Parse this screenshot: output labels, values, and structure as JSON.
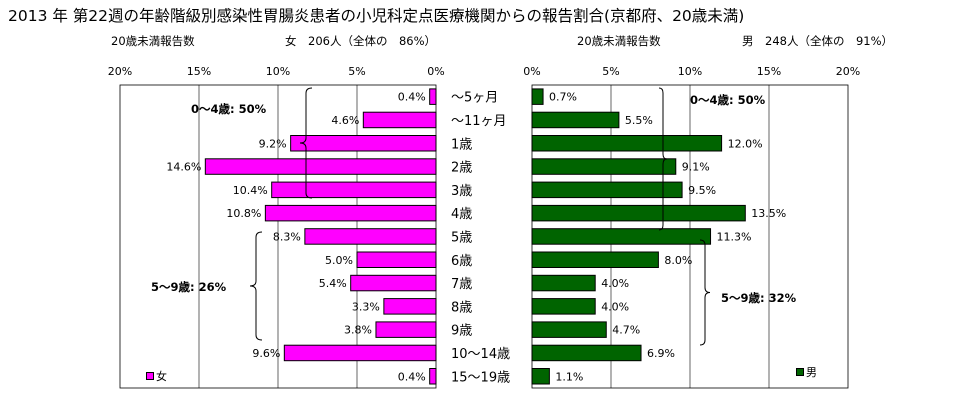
{
  "title": "2013 年 第22週の年齢階級別感染性胃腸炎患者の小児科定点医療機関からの報告割合(京都府、20歳未満)",
  "female_header": {
    "report_label": "20歳未満報告数",
    "summary": "女　206人（全体の　86%）"
  },
  "male_header": {
    "report_label": "20歳未満報告数",
    "summary": "男　248人（全体の　91%）"
  },
  "legend": {
    "female": "女",
    "male": "男"
  },
  "colors": {
    "female": "#ff00ff",
    "male": "#006400",
    "border": "#000000"
  },
  "chart_data": [
    {
      "type": "bar",
      "orientation": "horizontal",
      "direction": "right-to-left",
      "series": [
        {
          "name": "女",
          "values": [
            0.4,
            4.6,
            9.2,
            14.6,
            10.4,
            10.8,
            8.3,
            5.0,
            5.4,
            3.3,
            3.8,
            9.6,
            0.4
          ]
        }
      ],
      "categories": [
        "～5ヶ月",
        "～11ヶ月",
        "1歳",
        "2歳",
        "3歳",
        "4歳",
        "5歳",
        "6歳",
        "7歳",
        "8歳",
        "9歳",
        "10～14歳",
        "15～19歳"
      ],
      "data_labels": [
        "0.4%",
        "4.6%",
        "9.2%",
        "14.6%",
        "10.4%",
        "10.8%",
        "8.3%",
        "5.0%",
        "5.4%",
        "3.3%",
        "3.8%",
        "9.6%",
        "0.4%"
      ],
      "xlim": [
        0,
        20
      ],
      "ticks": [
        "0%",
        "5%",
        "10%",
        "15%",
        "20%"
      ],
      "annotations": [
        "0～4歳: 50%",
        "5～9歳: 26%"
      ],
      "grid": true,
      "legend_position": "bottom-left"
    },
    {
      "type": "bar",
      "orientation": "horizontal",
      "direction": "left-to-right",
      "series": [
        {
          "name": "男",
          "values": [
            0.7,
            5.5,
            12.0,
            9.1,
            9.5,
            13.5,
            11.3,
            8.0,
            4.0,
            4.0,
            4.7,
            6.9,
            1.1
          ]
        }
      ],
      "categories": [
        "～5ヶ月",
        "～11ヶ月",
        "1歳",
        "2歳",
        "3歳",
        "4歳",
        "5歳",
        "6歳",
        "7歳",
        "8歳",
        "9歳",
        "10～14歳",
        "15～19歳"
      ],
      "data_labels": [
        "0.7%",
        "5.5%",
        "12.0%",
        "9.1%",
        "9.5%",
        "13.5%",
        "11.3%",
        "8.0%",
        "4.0%",
        "4.0%",
        "4.7%",
        "6.9%",
        "1.1%"
      ],
      "xlim": [
        0,
        20
      ],
      "ticks": [
        "0%",
        "5%",
        "10%",
        "15%",
        "20%"
      ],
      "annotations": [
        "0～4歳: 50%",
        "5～9歳: 32%"
      ],
      "grid": true,
      "legend_position": "bottom-right"
    }
  ]
}
